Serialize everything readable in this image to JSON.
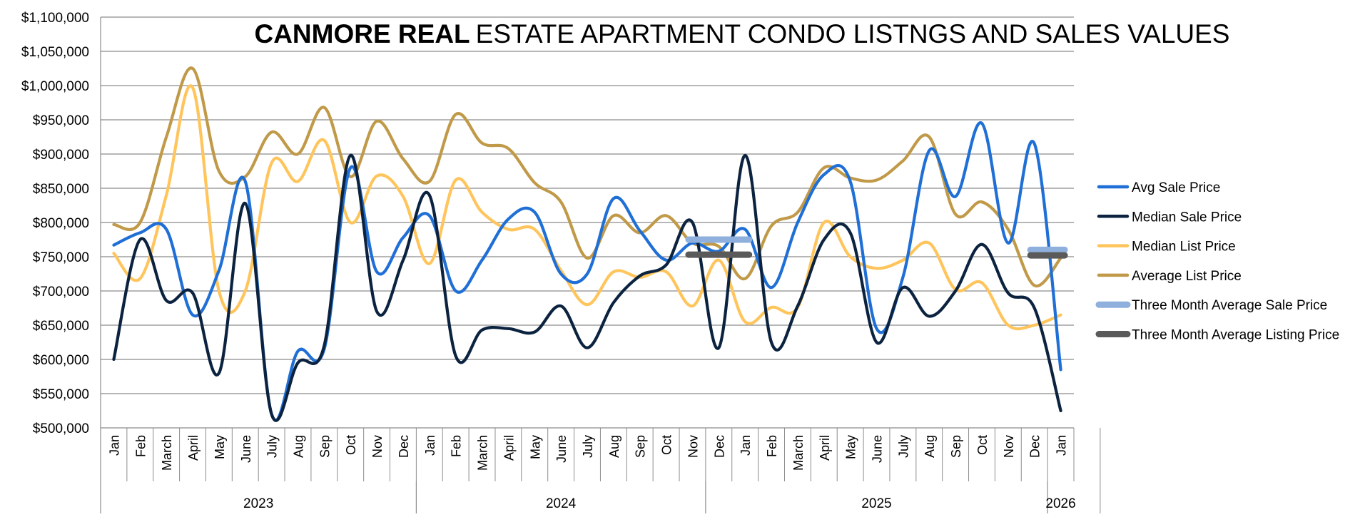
{
  "chart_data": {
    "type": "line",
    "title_bold": "CANMORE REAL",
    "title_rest": "ESTATE  APARTMENT CONDO LISTNGS AND SALES VALUES",
    "ylim": [
      500000,
      1100000
    ],
    "yticks": [
      500000,
      550000,
      600000,
      650000,
      700000,
      750000,
      800000,
      850000,
      900000,
      950000,
      1000000,
      1050000,
      1100000
    ],
    "ytick_labels": [
      "$500,000",
      "$550,000",
      "$600,000",
      "$650,000",
      "$700,000",
      "$750,000",
      "$800,000",
      "$850,000",
      "$900,000",
      "$950,000",
      "$1,000,000",
      "$1,050,000",
      "$1,100,000"
    ],
    "categories": [
      "Jan",
      "Feb",
      "March",
      "April",
      "May",
      "June",
      "July",
      "Aug",
      "Sep",
      "Oct",
      "Nov",
      "Dec",
      "Jan",
      "Feb",
      "March",
      "April",
      "May",
      "June",
      "July",
      "Aug",
      "Sep",
      "Oct",
      "Nov",
      "Dec",
      "Jan",
      "Feb",
      "March",
      "April",
      "May",
      "June",
      "July",
      "Aug",
      "Sep",
      "Oct",
      "Nov",
      "Dec",
      "Jan"
    ],
    "years": [
      {
        "label": "2023",
        "start": 0,
        "end": 11
      },
      {
        "label": "2024",
        "start": 12,
        "end": 22
      },
      {
        "label": "2025",
        "start": 23,
        "end": 35
      },
      {
        "label": "2026",
        "start": 36,
        "end": 36
      }
    ],
    "series": [
      {
        "name": "Avg Sale Price",
        "color": "#1f6fd6",
        "values": [
          767000,
          785000,
          790000,
          665000,
          730000,
          860000,
          520000,
          612000,
          615000,
          880000,
          728000,
          778000,
          810000,
          700000,
          745000,
          805000,
          815000,
          725000,
          725000,
          835000,
          788000,
          745000,
          770000,
          758000,
          790000,
          705000,
          800000,
          870000,
          860000,
          645000,
          720000,
          905000,
          838000,
          945000,
          770000,
          915000,
          585000
        ]
      },
      {
        "name": "Median Sale Price",
        "color": "#0c2340",
        "values": [
          600000,
          775000,
          686000,
          697000,
          580000,
          828000,
          520000,
          595000,
          620000,
          898000,
          670000,
          745000,
          840000,
          605000,
          643000,
          645000,
          640000,
          678000,
          617000,
          683000,
          722000,
          738000,
          800000,
          617000,
          898000,
          625000,
          678000,
          775000,
          785000,
          625000,
          705000,
          663000,
          700000,
          768000,
          697000,
          675000,
          525000
        ]
      },
      {
        "name": "Median List Price",
        "color": "#ffc55c",
        "values": [
          755000,
          718000,
          840000,
          997000,
          700000,
          700000,
          887000,
          860000,
          920000,
          800000,
          868000,
          838000,
          740000,
          862000,
          815000,
          790000,
          790000,
          730000,
          680000,
          728000,
          720000,
          728000,
          678000,
          745000,
          655000,
          676000,
          676000,
          800000,
          750000,
          733000,
          745000,
          770000,
          702000,
          712000,
          650000,
          650000,
          665000
        ]
      },
      {
        "name": "Average List Price",
        "color": "#c09a48",
        "values": [
          797000,
          800000,
          925000,
          1025000,
          875000,
          867000,
          932000,
          900000,
          968000,
          867000,
          948000,
          893000,
          860000,
          958000,
          916000,
          908000,
          858000,
          830000,
          748000,
          810000,
          785000,
          810000,
          770000,
          765000,
          718000,
          795000,
          815000,
          880000,
          865000,
          862000,
          890000,
          925000,
          812000,
          830000,
          790000,
          708000,
          748000
        ]
      },
      {
        "name": "Three Month Average Sale Price",
        "color": "#8fb0dc",
        "type": "segment",
        "segments": [
          {
            "start": 22,
            "end": 24,
            "value": 775000
          },
          {
            "start": 35,
            "end": 36,
            "value": 760000
          }
        ]
      },
      {
        "name": "Three Month Average Listing Price",
        "color": "#5a5a5a",
        "type": "segment",
        "segments": [
          {
            "start": 22,
            "end": 24,
            "value": 753000
          },
          {
            "start": 35,
            "end": 36,
            "value": 752000
          }
        ]
      }
    ],
    "legend": [
      "Avg Sale Price",
      "Median Sale Price",
      "Median List Price",
      "Average List Price",
      "Three Month Average Sale Price",
      "Three Month Average Listing Price"
    ],
    "legend_position": "right"
  }
}
